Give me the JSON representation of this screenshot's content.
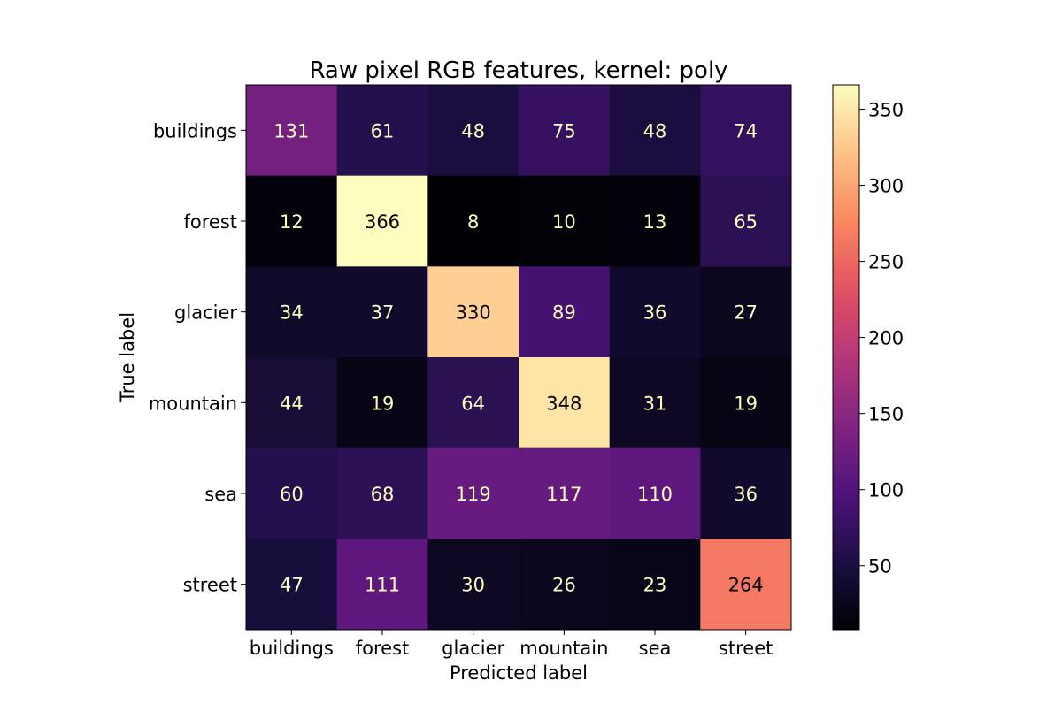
{
  "chart_data": {
    "type": "heatmap",
    "title": "Raw pixel RGB features, kernel: poly",
    "xlabel": "Predicted label",
    "ylabel": "True label",
    "x_categories": [
      "buildings",
      "forest",
      "glacier",
      "mountain",
      "sea",
      "street"
    ],
    "y_categories": [
      "buildings",
      "forest",
      "glacier",
      "mountain",
      "sea",
      "street"
    ],
    "values": [
      [
        131,
        61,
        48,
        75,
        48,
        74
      ],
      [
        12,
        366,
        8,
        10,
        13,
        65
      ],
      [
        34,
        37,
        330,
        89,
        36,
        27
      ],
      [
        44,
        19,
        64,
        348,
        31,
        19
      ],
      [
        60,
        68,
        119,
        117,
        110,
        36
      ],
      [
        47,
        111,
        30,
        26,
        23,
        264
      ]
    ],
    "colormap": "magma",
    "colorbar": {
      "min": 8,
      "max": 366,
      "ticks": [
        50,
        100,
        150,
        200,
        250,
        300,
        350
      ]
    },
    "text_color_light": "#fcfdbf",
    "text_color_dark": "#000004"
  }
}
